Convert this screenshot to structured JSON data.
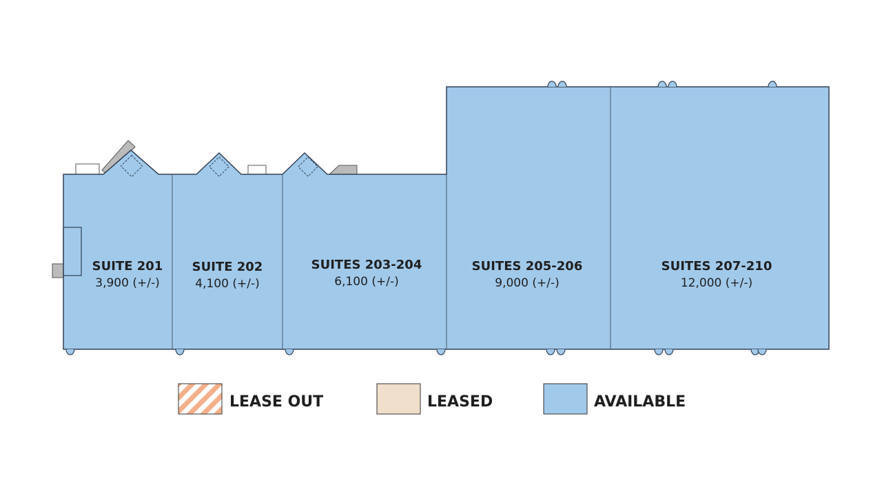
{
  "suites": [
    {
      "name": "SUITE 201",
      "area": "3,900 (+/-)"
    },
    {
      "name": "SUITE 202",
      "area": "4,100 (+/-)"
    },
    {
      "name": "SUITES 203-204",
      "area": "6,100 (+/-)"
    },
    {
      "name": "SUITES 205-206",
      "area": "9,000 (+/-)"
    },
    {
      "name": "SUITES 207-210",
      "area": "12,000 (+/-)"
    }
  ],
  "legend": [
    {
      "label": "LEASE OUT"
    },
    {
      "label": "LEASED"
    },
    {
      "label": "AVAILABLE"
    }
  ]
}
